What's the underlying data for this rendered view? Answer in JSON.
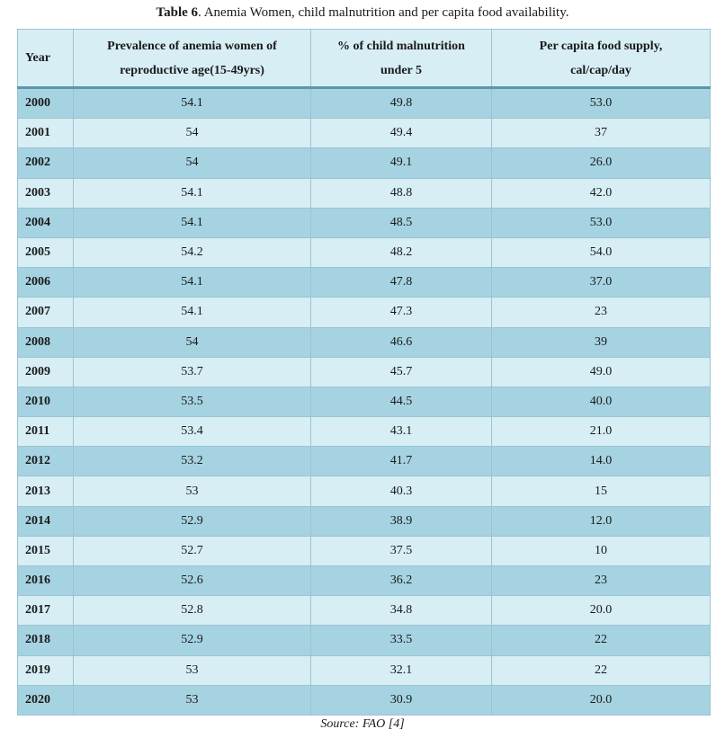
{
  "caption": {
    "label": "Table 6",
    "text": ". Anemia Women, child malnutrition and per capita food availability."
  },
  "headers": {
    "year": "Year",
    "anemia_l1": "Prevalence of anemia women of",
    "anemia_l2": "reproductive age(15-49yrs)",
    "malnut_l1": "% of child malnutrition",
    "malnut_l2": "under 5",
    "food_l1": "Per capita food supply,",
    "food_l2": "cal/cap/day"
  },
  "rows": [
    {
      "year": "2000",
      "anemia": "54.1",
      "malnutrition": "49.8",
      "food": "53.0"
    },
    {
      "year": "2001",
      "anemia": "54",
      "malnutrition": "49.4",
      "food": "37"
    },
    {
      "year": "2002",
      "anemia": "54",
      "malnutrition": "49.1",
      "food": "26.0"
    },
    {
      "year": "2003",
      "anemia": "54.1",
      "malnutrition": "48.8",
      "food": "42.0"
    },
    {
      "year": "2004",
      "anemia": "54.1",
      "malnutrition": "48.5",
      "food": "53.0"
    },
    {
      "year": "2005",
      "anemia": "54.2",
      "malnutrition": "48.2",
      "food": "54.0"
    },
    {
      "year": "2006",
      "anemia": "54.1",
      "malnutrition": "47.8",
      "food": "37.0"
    },
    {
      "year": "2007",
      "anemia": "54.1",
      "malnutrition": "47.3",
      "food": "23"
    },
    {
      "year": "2008",
      "anemia": "54",
      "malnutrition": "46.6",
      "food": "39"
    },
    {
      "year": "2009",
      "anemia": "53.7",
      "malnutrition": "45.7",
      "food": "49.0"
    },
    {
      "year": "2010",
      "anemia": "53.5",
      "malnutrition": "44.5",
      "food": "40.0"
    },
    {
      "year": "2011",
      "anemia": "53.4",
      "malnutrition": "43.1",
      "food": "21.0"
    },
    {
      "year": "2012",
      "anemia": "53.2",
      "malnutrition": "41.7",
      "food": "14.0"
    },
    {
      "year": "2013",
      "anemia": "53",
      "malnutrition": "40.3",
      "food": "15"
    },
    {
      "year": "2014",
      "anemia": "52.9",
      "malnutrition": "38.9",
      "food": "12.0"
    },
    {
      "year": "2015",
      "anemia": "52.7",
      "malnutrition": "37.5",
      "food": "10"
    },
    {
      "year": "2016",
      "anemia": "52.6",
      "malnutrition": "36.2",
      "food": "23"
    },
    {
      "year": "2017",
      "anemia": "52.8",
      "malnutrition": "34.8",
      "food": "20.0"
    },
    {
      "year": "2018",
      "anemia": "52.9",
      "malnutrition": "33.5",
      "food": "22"
    },
    {
      "year": "2019",
      "anemia": "53",
      "malnutrition": "32.1",
      "food": "22"
    },
    {
      "year": "2020",
      "anemia": "53",
      "malnutrition": "30.9",
      "food": "20.0"
    }
  ],
  "source": "Source: FAO [4]",
  "colors": {
    "row_dark": "#a6d3e1",
    "row_light": "#d7eef5",
    "border": "#9cc3d0",
    "header_rule": "#5f95a8"
  }
}
